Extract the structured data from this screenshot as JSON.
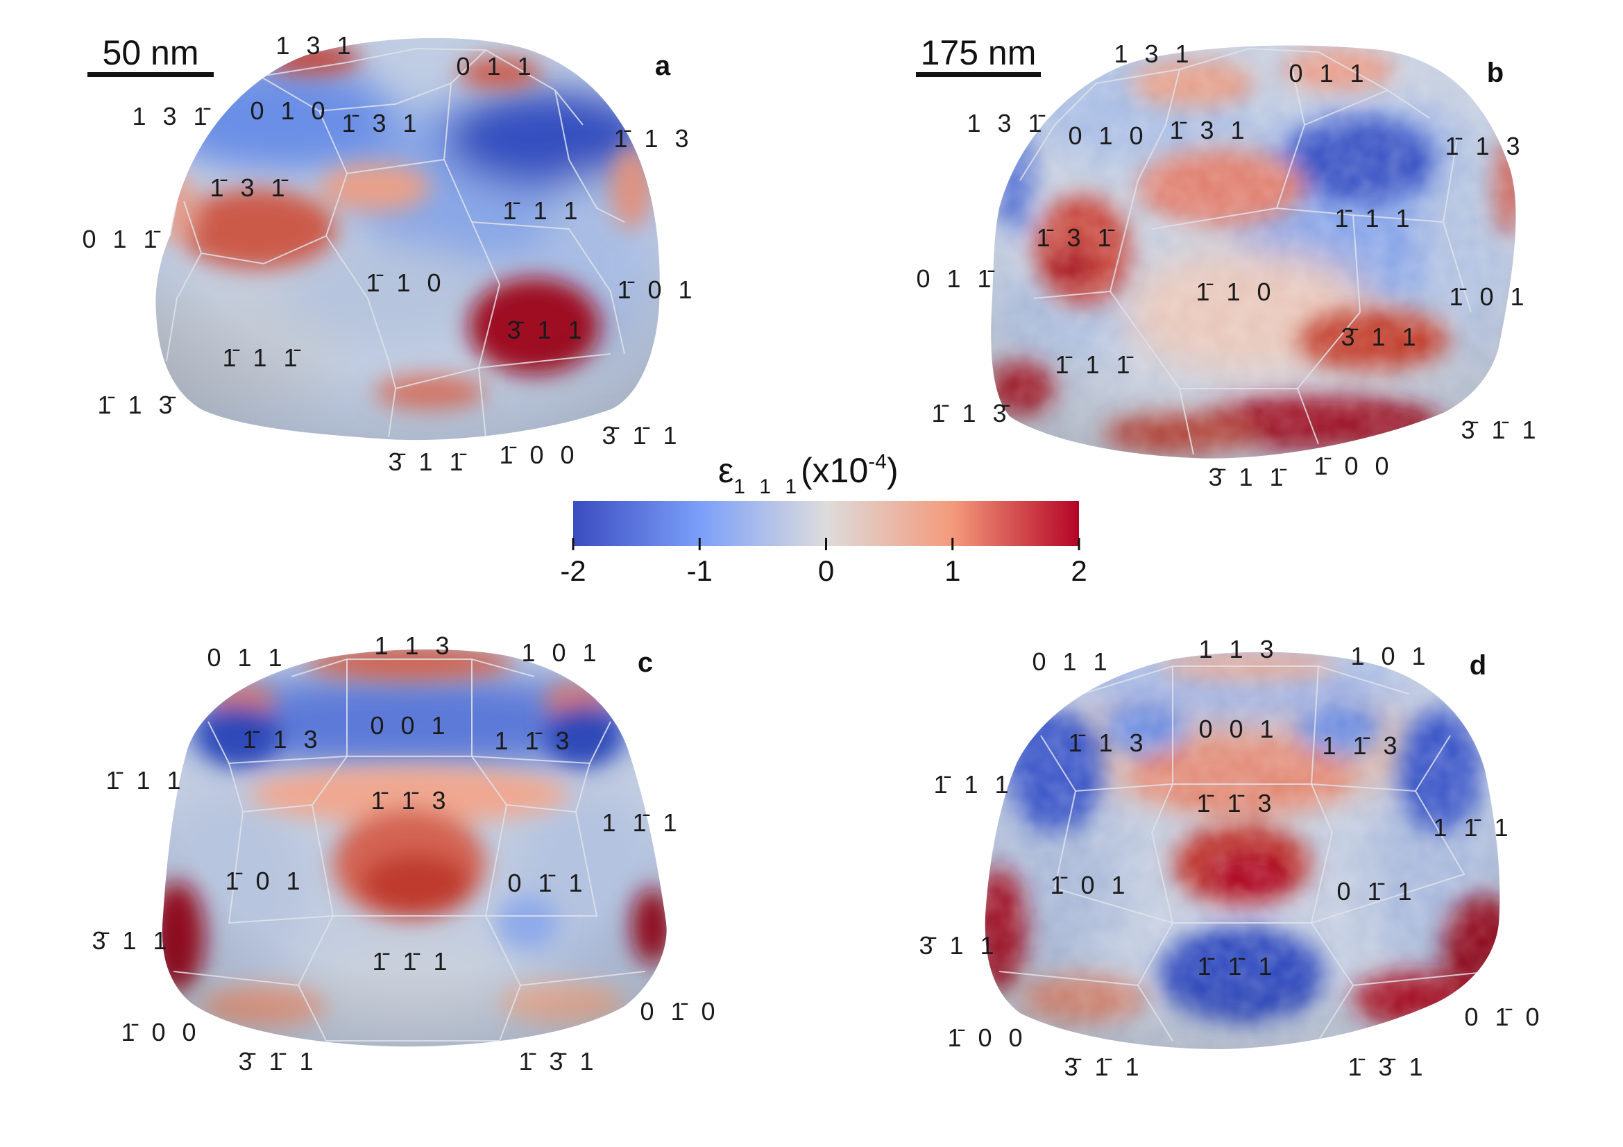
{
  "colorbar": {
    "symbol": "ε",
    "subscript": "1 1 1",
    "unit_prefix": "(x10",
    "unit_exponent": "-4",
    "unit_suffix": ")",
    "min": -2,
    "max": 2,
    "ticks": [
      "-2",
      "-1",
      "0",
      "1",
      "2"
    ],
    "colormap": [
      "#3b4cc0",
      "#7b9ff9",
      "#dddcdc",
      "#f49a7b",
      "#b40426"
    ]
  },
  "panels": [
    {
      "letter": "a",
      "scale_bar": "50 nm",
      "facets": [
        {
          "label": "1 3 1"
        },
        {
          "label": "0 1 1"
        },
        {
          "label": "1 3 1̄"
        },
        {
          "label": "0 1 0"
        },
        {
          "label": "1̄ 3 1"
        },
        {
          "label": "1̄ 1 3"
        },
        {
          "label": "1̄ 3 1̄"
        },
        {
          "label": "1̄ 1 1"
        },
        {
          "label": "0 1 1̄"
        },
        {
          "label": "1̄ 1 0"
        },
        {
          "label": "1̄ 0 1"
        },
        {
          "label": "3̄ 1 1"
        },
        {
          "label": "1̄ 1 1̄"
        },
        {
          "label": "1̄ 1 3̄"
        },
        {
          "label": "3̄ 1̄ 1"
        },
        {
          "label": "3̄ 1 1̄"
        },
        {
          "label": "1̄ 0 0"
        }
      ]
    },
    {
      "letter": "b",
      "scale_bar": "175 nm",
      "facets": [
        {
          "label": "1 3 1"
        },
        {
          "label": "0 1 1"
        },
        {
          "label": "1 3 1̄"
        },
        {
          "label": "0 1 0"
        },
        {
          "label": "1̄ 3 1"
        },
        {
          "label": "1̄ 1 3"
        },
        {
          "label": "1̄ 3 1̄"
        },
        {
          "label": "1̄ 1 1"
        },
        {
          "label": "0 1 1̄"
        },
        {
          "label": "1̄ 1 0"
        },
        {
          "label": "1̄ 0 1"
        },
        {
          "label": "3̄ 1 1"
        },
        {
          "label": "1̄ 1 1̄"
        },
        {
          "label": "1̄ 1 3̄"
        },
        {
          "label": "3̄ 1̄ 1"
        },
        {
          "label": "1̄ 0 0"
        },
        {
          "label": "3̄ 1 1̄"
        }
      ]
    },
    {
      "letter": "c",
      "facets": [
        {
          "label": "0 1 1"
        },
        {
          "label": "1 1 3"
        },
        {
          "label": "1 0 1"
        },
        {
          "label": "1̄ 1 3"
        },
        {
          "label": "0 0 1"
        },
        {
          "label": "1 1̄ 3"
        },
        {
          "label": "1̄ 1 1"
        },
        {
          "label": "1̄ 1̄ 3"
        },
        {
          "label": "1 1̄ 1"
        },
        {
          "label": "1̄ 0 1"
        },
        {
          "label": "0 1̄ 1"
        },
        {
          "label": "3̄ 1 1"
        },
        {
          "label": "1̄ 1̄ 1"
        },
        {
          "label": "0 1̄ 0"
        },
        {
          "label": "1̄ 0 0"
        },
        {
          "label": "3̄ 1̄ 1"
        },
        {
          "label": "1̄ 3̄ 1"
        }
      ]
    },
    {
      "letter": "d",
      "facets": [
        {
          "label": "0 1 1"
        },
        {
          "label": "1 1 3"
        },
        {
          "label": "1 0 1"
        },
        {
          "label": "1̄ 1 3"
        },
        {
          "label": "0 0 1"
        },
        {
          "label": "1 1̄ 3"
        },
        {
          "label": "1̄ 1 1"
        },
        {
          "label": "1̄ 1̄ 3"
        },
        {
          "label": "1 1̄ 1"
        },
        {
          "label": "1̄ 0 1"
        },
        {
          "label": "0 1̄ 1"
        },
        {
          "label": "3̄ 1 1"
        },
        {
          "label": "1̄ 1̄ 1"
        },
        {
          "label": "0 1̄ 0"
        },
        {
          "label": "1̄ 0 0"
        },
        {
          "label": "3̄ 1̄ 1"
        },
        {
          "label": "1̄ 3̄ 1"
        }
      ]
    }
  ]
}
